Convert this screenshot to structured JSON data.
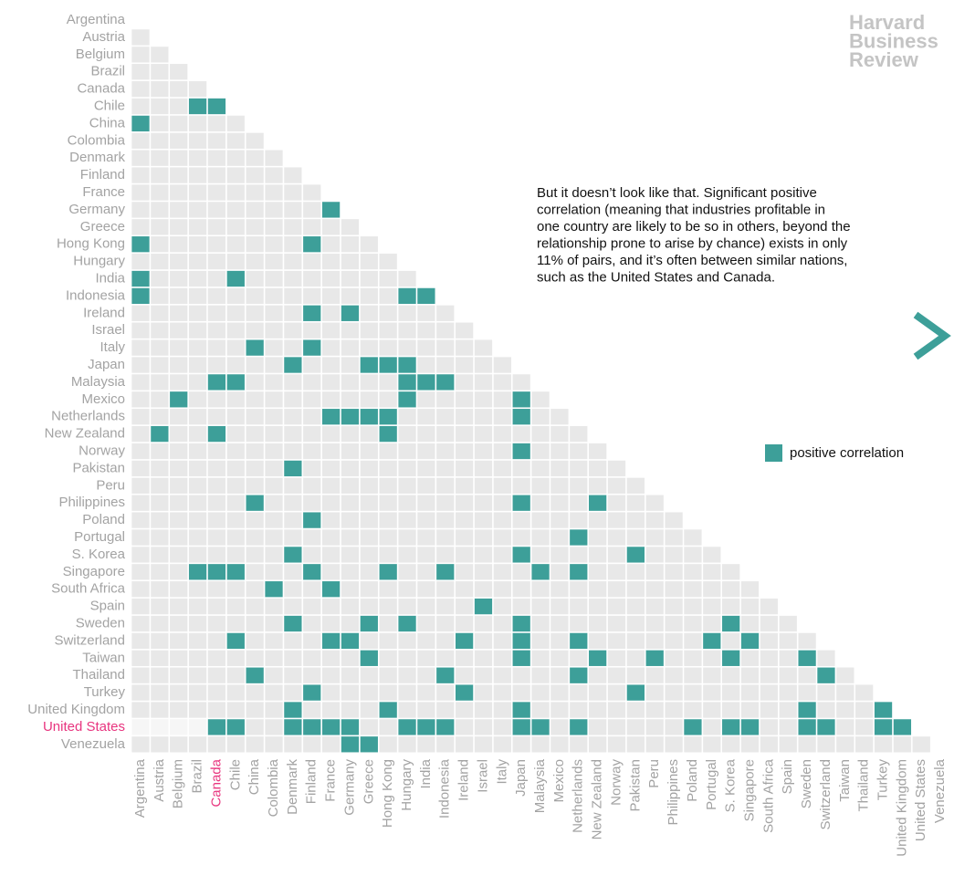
{
  "chart_data": {
    "type": "correlation-triangle",
    "countries": [
      "Argentina",
      "Austria",
      "Belgium",
      "Brazil",
      "Canada",
      "Chile",
      "China",
      "Colombia",
      "Denmark",
      "Finland",
      "France",
      "Germany",
      "Greece",
      "Hong Kong",
      "Hungary",
      "India",
      "Indonesia",
      "Ireland",
      "Israel",
      "Italy",
      "Japan",
      "Malaysia",
      "Mexico",
      "Netherlands",
      "New Zealand",
      "Norway",
      "Pakistan",
      "Peru",
      "Philippines",
      "Poland",
      "Portugal",
      "S. Korea",
      "Singapore",
      "South Africa",
      "Spain",
      "Sweden",
      "Switzerland",
      "Taiwan",
      "Thailand",
      "Turkey",
      "United Kingdom",
      "United States",
      "Venezuela"
    ],
    "positive_pairs": [
      [
        5,
        3
      ],
      [
        5,
        4
      ],
      [
        6,
        0
      ],
      [
        11,
        10
      ],
      [
        13,
        0
      ],
      [
        13,
        9
      ],
      [
        15,
        0
      ],
      [
        15,
        5
      ],
      [
        16,
        0
      ],
      [
        16,
        14
      ],
      [
        16,
        15
      ],
      [
        17,
        9
      ],
      [
        17,
        11
      ],
      [
        19,
        6
      ],
      [
        19,
        9
      ],
      [
        20,
        8
      ],
      [
        20,
        12
      ],
      [
        20,
        13
      ],
      [
        20,
        14
      ],
      [
        21,
        4
      ],
      [
        21,
        5
      ],
      [
        21,
        14
      ],
      [
        21,
        15
      ],
      [
        21,
        16
      ],
      [
        22,
        2
      ],
      [
        22,
        14
      ],
      [
        22,
        20
      ],
      [
        23,
        10
      ],
      [
        23,
        11
      ],
      [
        23,
        12
      ],
      [
        23,
        13
      ],
      [
        23,
        20
      ],
      [
        24,
        1
      ],
      [
        24,
        4
      ],
      [
        24,
        13
      ],
      [
        25,
        20
      ],
      [
        26,
        8
      ],
      [
        28,
        6
      ],
      [
        28,
        20
      ],
      [
        28,
        24
      ],
      [
        29,
        9
      ],
      [
        30,
        23
      ],
      [
        31,
        8
      ],
      [
        31,
        20
      ],
      [
        31,
        26
      ],
      [
        32,
        3
      ],
      [
        32,
        4
      ],
      [
        32,
        5
      ],
      [
        32,
        9
      ],
      [
        32,
        13
      ],
      [
        32,
        16
      ],
      [
        32,
        21
      ],
      [
        32,
        23
      ],
      [
        33,
        7
      ],
      [
        33,
        10
      ],
      [
        34,
        18
      ],
      [
        35,
        8
      ],
      [
        35,
        12
      ],
      [
        35,
        14
      ],
      [
        35,
        20
      ],
      [
        35,
        31
      ],
      [
        36,
        5
      ],
      [
        36,
        10
      ],
      [
        36,
        11
      ],
      [
        36,
        17
      ],
      [
        36,
        20
      ],
      [
        36,
        23
      ],
      [
        36,
        30
      ],
      [
        36,
        32
      ],
      [
        37,
        12
      ],
      [
        37,
        20
      ],
      [
        37,
        24
      ],
      [
        37,
        27
      ],
      [
        37,
        31
      ],
      [
        37,
        35
      ],
      [
        38,
        6
      ],
      [
        38,
        16
      ],
      [
        38,
        23
      ],
      [
        38,
        36
      ],
      [
        39,
        9
      ],
      [
        39,
        17
      ],
      [
        39,
        26
      ],
      [
        40,
        8
      ],
      [
        40,
        13
      ],
      [
        40,
        20
      ],
      [
        40,
        35
      ],
      [
        40,
        39
      ],
      [
        41,
        4
      ],
      [
        41,
        5
      ],
      [
        41,
        8
      ],
      [
        41,
        9
      ],
      [
        41,
        10
      ],
      [
        41,
        11
      ],
      [
        41,
        14
      ],
      [
        41,
        15
      ],
      [
        41,
        16
      ],
      [
        41,
        20
      ],
      [
        41,
        21
      ],
      [
        41,
        23
      ],
      [
        41,
        29
      ],
      [
        41,
        31
      ],
      [
        41,
        32
      ],
      [
        41,
        35
      ],
      [
        41,
        36
      ],
      [
        41,
        39
      ],
      [
        41,
        40
      ],
      [
        42,
        11
      ],
      [
        42,
        12
      ]
    ],
    "highlight_row": 41,
    "highlight_column": 4,
    "highlight_color": "#e8357f",
    "color": "#3d9f99",
    "empty_color": "#e8e8e8",
    "legend_label": "positive correlation",
    "annotation": [
      "But it doesn’t look like that. Significant positive",
      "correlation (meaning that industries profitable in",
      "one country are likely to be so in others, beyond the",
      "relationship prone to arise by chance) exists in only",
      "11% of pairs, and it’s often between similar nations,",
      "such as the United States and Canada."
    ],
    "logo": [
      "Harvard",
      "Business",
      "Review"
    ]
  }
}
